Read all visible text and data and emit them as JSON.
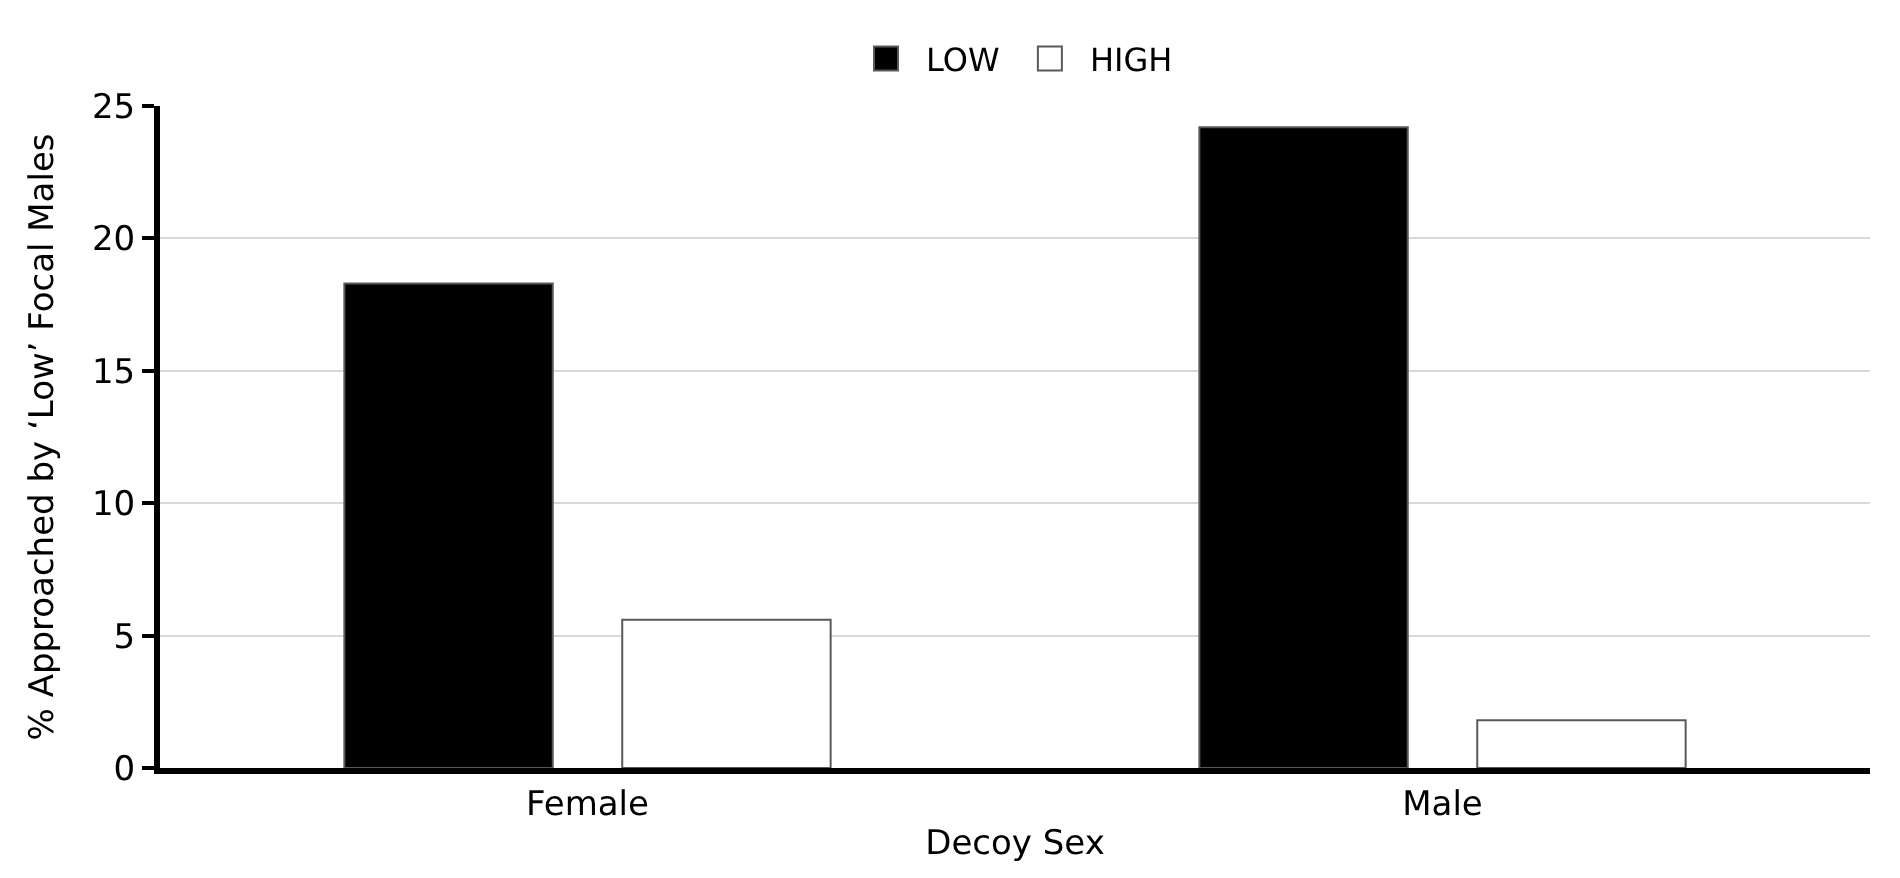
{
  "chart_data": {
    "type": "bar",
    "xlabel": "Decoy Sex",
    "ylabel": "% Approached by ‘Low’ Focal Males",
    "categories": [
      "Female",
      "Male"
    ],
    "series": [
      {
        "name": "LOW",
        "color": "#000000",
        "values": [
          18.3,
          24.2
        ]
      },
      {
        "name": "HIGH",
        "color": "#ffffff",
        "values": [
          5.6,
          1.8
        ]
      }
    ],
    "ylim": [
      0,
      25
    ],
    "yticks": [
      0,
      5,
      10,
      15,
      20,
      25
    ],
    "grid": "y",
    "legend": "top"
  }
}
